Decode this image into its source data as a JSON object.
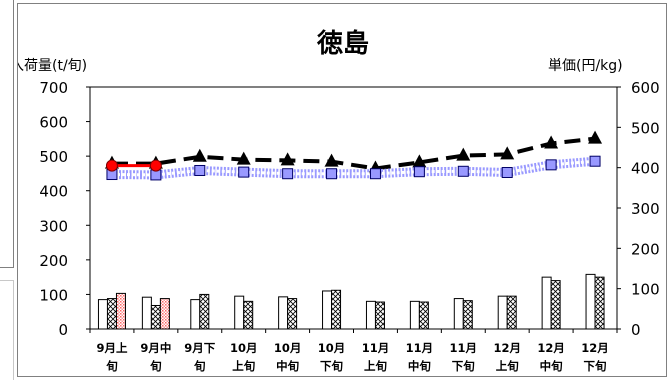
{
  "chart_data": {
    "type": "bar",
    "title": "徳島",
    "ylabel_left": "入荷量(t/旬)",
    "ylabel_right": "単価(円/kg)",
    "ylim_left": [
      0,
      700
    ],
    "ylim_right": [
      0,
      600
    ],
    "yticks_left": [
      "0",
      "100",
      "200",
      "300",
      "400",
      "500",
      "600",
      "700"
    ],
    "yticks_right": [
      "0",
      "100",
      "200",
      "300",
      "400",
      "500",
      "600"
    ],
    "categories": [
      [
        "9月上",
        "旬"
      ],
      [
        "9月中",
        "旬"
      ],
      [
        "9月下",
        "旬"
      ],
      [
        "10月",
        "上旬"
      ],
      [
        "10月",
        "中旬"
      ],
      [
        "10月",
        "下旬"
      ],
      [
        "11月",
        "上旬"
      ],
      [
        "11月",
        "中旬"
      ],
      [
        "11月",
        "下旬"
      ],
      [
        "12月",
        "上旬"
      ],
      [
        "12月",
        "中旬"
      ],
      [
        "12月",
        "下旬"
      ]
    ],
    "series": [
      {
        "kind": "bar",
        "style": "white",
        "axis": "left",
        "values": [
          85,
          92,
          85,
          95,
          93,
          110,
          80,
          80,
          88,
          95,
          150,
          158
        ]
      },
      {
        "kind": "bar",
        "style": "crosshatch",
        "axis": "left",
        "values": [
          88,
          68,
          100,
          80,
          88,
          112,
          78,
          78,
          82,
          95,
          140,
          150
        ]
      },
      {
        "kind": "bar",
        "style": "dotted-red",
        "axis": "left",
        "values": [
          103,
          88,
          null,
          null,
          null,
          null,
          null,
          null,
          null,
          null,
          null,
          null
        ]
      },
      {
        "kind": "line",
        "style": "black-dashed-triangle",
        "axis": "right",
        "values": [
          410,
          410,
          427,
          420,
          418,
          415,
          398,
          413,
          430,
          433,
          460,
          472
        ]
      },
      {
        "kind": "line",
        "style": "blue-wave-square",
        "axis": "right",
        "values": [
          383,
          382,
          393,
          389,
          385,
          385,
          385,
          390,
          391,
          388,
          407,
          416
        ]
      },
      {
        "kind": "line",
        "style": "red-circle",
        "axis": "right",
        "values": [
          405,
          405,
          null,
          null,
          null,
          null,
          null,
          null,
          null,
          null,
          null,
          null
        ]
      }
    ],
    "grid": false
  },
  "colors": {
    "frame": "#808080",
    "red": "#ff0000",
    "blue_marker": "#9999ff",
    "blue_line": "#9999ff",
    "black": "#000000",
    "red_pattern": "#ff9999"
  }
}
